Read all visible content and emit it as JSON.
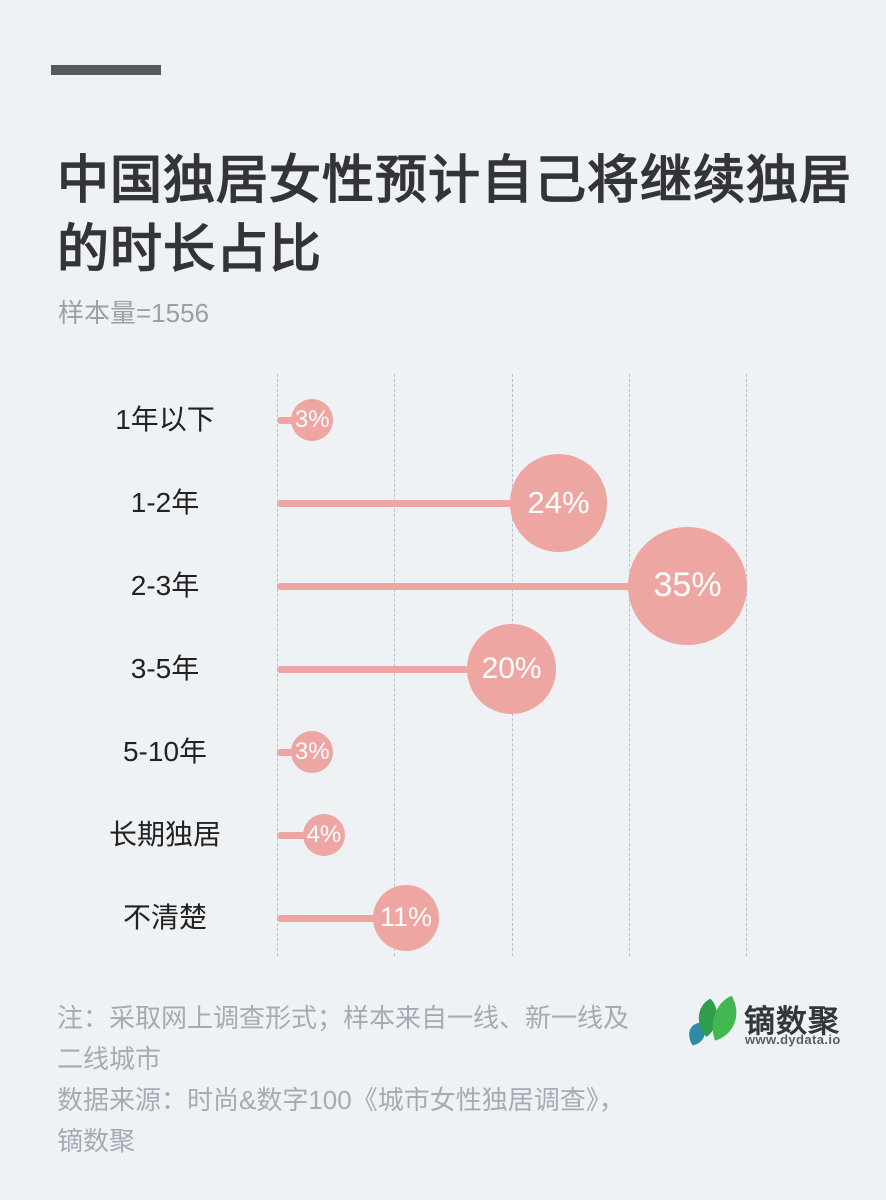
{
  "page": {
    "background_color": "#eff2f5"
  },
  "header": {
    "accent_bar_color": "#58595b",
    "title": "中国独居女性预计自己将继续独居的时长占比",
    "title_color": "#323438",
    "sample_label": "样本量=1556",
    "sample_color": "#9aa0a8"
  },
  "chart_data": {
    "type": "bar",
    "subtype": "bubble-lollipop-horizontal",
    "title": "中国独居女性预计自己将继续独居的时长占比",
    "sample_size": "样本量=1556",
    "categories": [
      "1年以下",
      "1-2年",
      "2-3年",
      "3-5年",
      "5-10年",
      "长期独居",
      "不清楚"
    ],
    "values": [
      3,
      24,
      35,
      20,
      3,
      4,
      11
    ],
    "value_labels": [
      "3%",
      "24%",
      "35%",
      "20%",
      "3%",
      "4%",
      "11%"
    ],
    "xlabel": "",
    "ylabel": "",
    "xlim": [
      0,
      40
    ],
    "gridline_values": [
      0,
      10,
      20,
      30,
      40
    ],
    "grid": "dashed-vertical",
    "legend": "none",
    "bubble_color": "#eda6a2",
    "bubble_text_color": "#ffffff",
    "gridline_color": "#b9bec7",
    "category_label_color": "#222222"
  },
  "footer": {
    "note_line1": "注：采取网上调查形式；样本来自一线、新一线及二线城市",
    "note_line2": "数据来源：时尚&数字100《城市女性独居调查》，镝数聚",
    "note_color": "#a6abb3",
    "logo_text": "镝数聚",
    "logo_text_color": "#33363b",
    "logo_url": "www.dydata.io",
    "logo_url_color": "#5a5f66",
    "leaf_green_bright": "#43b74f",
    "leaf_green_dark": "#2f9e4c",
    "leaf_teal": "#2e8ba4"
  }
}
